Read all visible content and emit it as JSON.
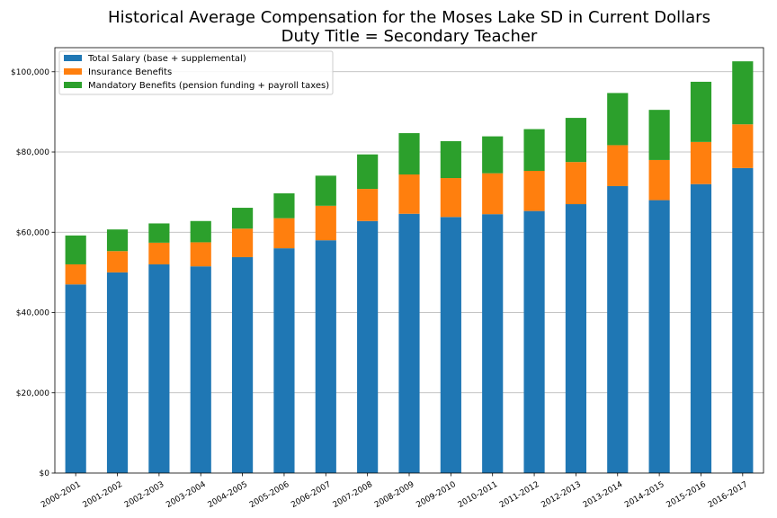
{
  "chart_data": {
    "type": "bar",
    "stacked": true,
    "title": "Historical Average Compensation for the Moses Lake SD in Current Dollars",
    "subtitle": "Duty Title = Secondary Teacher",
    "xlabel": "",
    "ylabel": "",
    "ylim": [
      0,
      106000
    ],
    "yticks": [
      0,
      20000,
      40000,
      60000,
      80000,
      100000
    ],
    "ytick_labels": [
      "$0",
      "$20,000",
      "$40,000",
      "$60,000",
      "$80,000",
      "$100,000"
    ],
    "grid": "horizontal",
    "legend_position": "top-left",
    "categories": [
      "2000-2001",
      "2001-2002",
      "2002-2003",
      "2003-2004",
      "2004-2005",
      "2005-2006",
      "2006-2007",
      "2007-2008",
      "2008-2009",
      "2009-2010",
      "2010-2011",
      "2011-2012",
      "2012-2013",
      "2013-2014",
      "2014-2015",
      "2015-2016",
      "2016-2017"
    ],
    "series": [
      {
        "name": "Total Salary (base + supplemental)",
        "color": "#1f77b4",
        "values": [
          47000,
          50000,
          52000,
          51500,
          53800,
          56000,
          58000,
          62800,
          64600,
          63800,
          64500,
          65300,
          67000,
          71500,
          68000,
          72000,
          76000
        ]
      },
      {
        "name": "Insurance Benefits",
        "color": "#ff7f0e",
        "values": [
          5000,
          5300,
          5400,
          6000,
          7100,
          7500,
          8600,
          8000,
          9800,
          9700,
          10200,
          10000,
          10500,
          10200,
          10000,
          10500,
          10900
        ]
      },
      {
        "name": "Mandatory Benefits (pension funding + payroll taxes)",
        "color": "#2ca02c",
        "values": [
          7200,
          5400,
          4800,
          5300,
          5200,
          6200,
          7500,
          8600,
          10300,
          9200,
          9200,
          10400,
          11000,
          13000,
          12500,
          15000,
          15700
        ]
      }
    ]
  }
}
